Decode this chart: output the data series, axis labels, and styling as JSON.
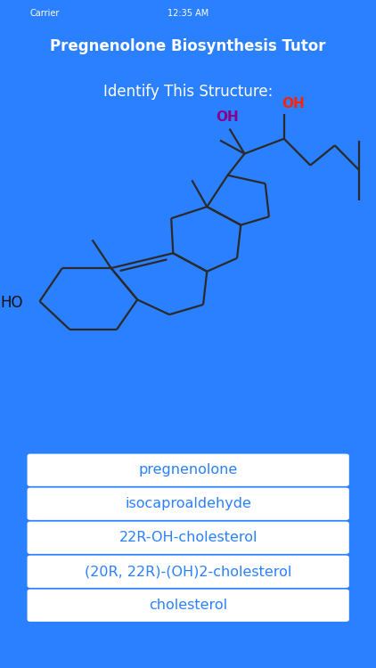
{
  "title": "Pregnenolone Biosynthesis Tutor",
  "subtitle": "Identify This Structure:",
  "title_bg": "#1A44CC",
  "subtitle_bg": "#2B80FF",
  "body_bg": "#2B80FF",
  "molecule_bg": "#FFFFFF",
  "button_labels": [
    "pregnenolone",
    "isocaproaldehyde",
    "22R-OH-cholesterol",
    "(20R, 22R)-(OH)2-cholesterol",
    "cholesterol"
  ],
  "button_text_color": "#2B80FF",
  "button_bg": "#FFFFFF",
  "oh_red_color": "#FF2200",
  "oh_purple_color": "#880088",
  "ho_black_color": "#111111",
  "line_color": "#2a2a2a",
  "statusbar_bg": "#1A44CC"
}
